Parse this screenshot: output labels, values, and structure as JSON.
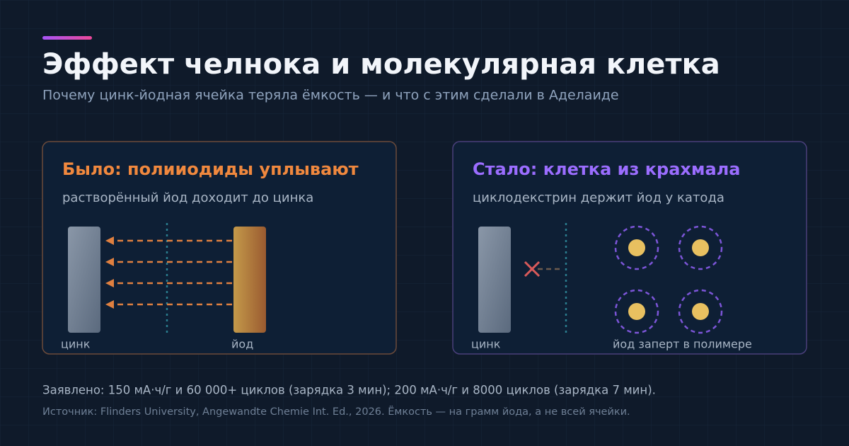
{
  "header": {
    "title": "Эффект челнока и молекулярная клетка",
    "subtitle": "Почему цинк-йодная ячейка теряла ёмкость — и что с этим сделали в Аделаиде"
  },
  "panels": [
    {
      "title": "Было: полииодиды уплывают",
      "subtitle": "растворённый йод доходит до цинка",
      "labels": [
        "цинк",
        "йод"
      ]
    },
    {
      "title": "Стало: клетка из крахмала",
      "subtitle": "циклодекстрин держит йод у катода",
      "labels": [
        "цинк",
        "йод заперт в полимере"
      ]
    }
  ],
  "footer": {
    "claim": "Заявлено: 150 мА·ч/г и 60 000+ циклов (зарядка 3 мин); 200 мА·ч/г и 8000 циклов (зарядка 7 мин).",
    "source": "Источник: Flinders University, Angewandte Chemie Int. Ed., 2026. Ёмкость — на грамм йода, а не всей ячейки."
  }
}
